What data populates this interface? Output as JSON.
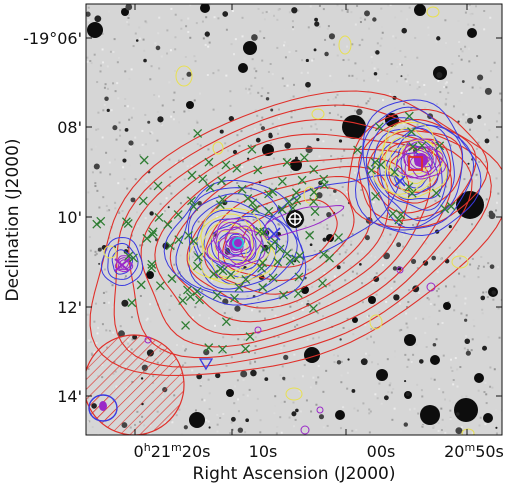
{
  "chart_data": {
    "type": "image",
    "xlabel": "Right Ascension (J2000)",
    "ylabel": "Declination (J2000)",
    "x_ticks": [
      {
        "text": "0h21m20s",
        "hour": "0",
        "min": "21",
        "sec": "20s",
        "label_prefix": "0",
        "label_h": "h",
        "label_mid": "21",
        "label_m": "m",
        "label_sec": "20s"
      },
      {
        "text": "10s"
      },
      {
        "text": "00s"
      },
      {
        "text": "20m50s",
        "min": "20",
        "sec": "50s"
      }
    ],
    "y_ticks": [
      "-19°06'",
      "08'",
      "10'",
      "12'",
      "14'"
    ],
    "colors": {
      "red": "#e0302a",
      "blue": "#3a3ae0",
      "purple": "#9a28c8",
      "yellow": "#e8e050",
      "green": "#2e7d32",
      "background": "#d8d8d8"
    }
  }
}
